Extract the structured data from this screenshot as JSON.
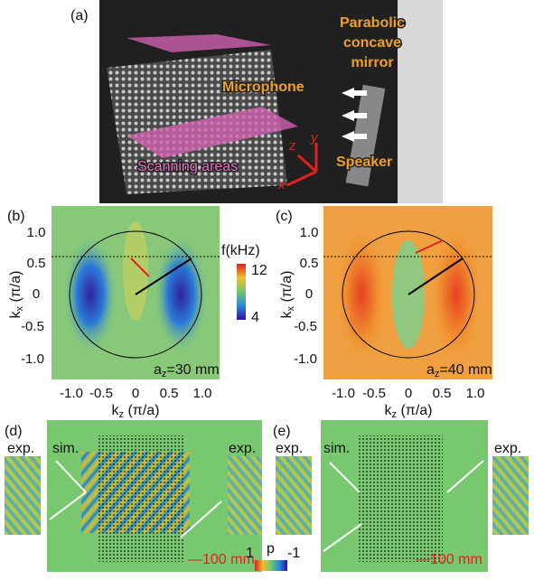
{
  "panel_a": {
    "label": "(a)",
    "mirror": [
      "Parabolic",
      "concave",
      "mirror"
    ],
    "microphone": "Microphone",
    "speaker": "Speaker",
    "scanning": "Scanning areas",
    "axes": [
      "z",
      "y",
      "x"
    ]
  },
  "panel_b": {
    "label": "(b)",
    "yticks": [
      "1.0",
      "0.5",
      "0",
      "-0.5",
      "-1.0"
    ],
    "xticks": [
      "-1.0",
      "-0.5",
      "0",
      "0.5",
      "1.0"
    ],
    "ylabel": [
      "k",
      "x",
      " (π/a)"
    ],
    "xlabel": [
      "k",
      "z",
      " (π/a)"
    ],
    "note": [
      "a",
      "z",
      "=30 mm"
    ]
  },
  "colorbar_f": {
    "title": "f(kHz)",
    "max": "12",
    "min": "4"
  },
  "panel_c": {
    "label": "(c)",
    "yticks": [
      "1.0",
      "0.5",
      "0",
      "-0.5",
      "-1.0"
    ],
    "xticks": [
      "-1.0",
      "-0.5",
      "0",
      "0.5",
      "1.0"
    ],
    "ylabel": [
      "k",
      "x",
      " (π/a)"
    ],
    "xlabel": [
      "k",
      "z",
      " (π/a)"
    ],
    "note": [
      "a",
      "z",
      "=40 mm"
    ]
  },
  "panel_d": {
    "label": "(d)",
    "exp_left": "exp.",
    "sim": "sim.",
    "exp_right": "exp.",
    "scale": "—100 mm"
  },
  "panel_e": {
    "label": "(e)",
    "exp_left": "exp.",
    "sim": "sim.",
    "exp_right": "exp.",
    "scale": "—100 mm"
  },
  "colorbar_p": {
    "max": "1",
    "title": "p",
    "min": "-1"
  }
}
